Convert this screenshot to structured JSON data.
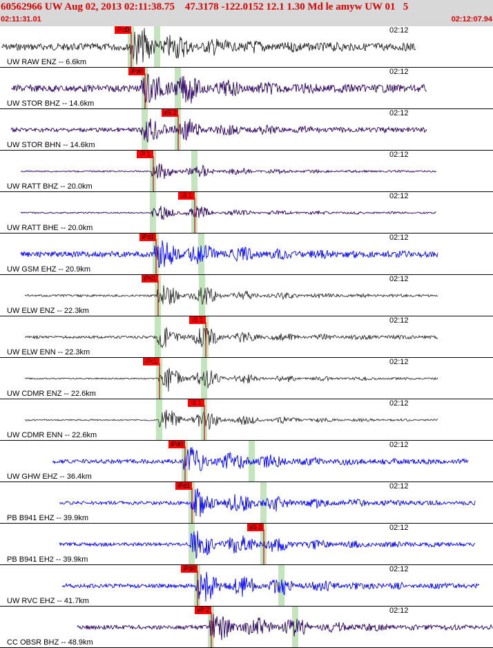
{
  "header": {
    "title": "60562966 UW Aug 02, 2013 02:11:38.75    47.3178 -122.0152 12.1 1.30 Md le amyw UW 01   5",
    "start_time": "02:11:31.01",
    "end_time": "02:12:07.94"
  },
  "colors": {
    "header_text": "#e00000",
    "pick_box": "#ff0000",
    "window": "#b8e0b0",
    "blue_trace": "#0000ff",
    "dark_trace": "#202020",
    "purple_trace": "#2a0060"
  },
  "traces": [
    {
      "label": "UW RAW ENZ -- 6.6km",
      "time": "02:12",
      "color": "#202020",
      "pick": "iPcD",
      "pick_pos": "p",
      "windows": [
        "p",
        "s"
      ]
    },
    {
      "label": "UW STOR BHZ -- 14.6km",
      "time": "02:12",
      "color": "#2a0060",
      "pick": "iPd0",
      "pick_pos": "p",
      "windows": [
        "p",
        "s"
      ]
    },
    {
      "label": "UW STOR BHN -- 14.6km",
      "time": "02:12",
      "color": "#2a0060",
      "pick": "eS 2",
      "pick_pos": "s",
      "windows": [
        "p",
        "s"
      ]
    },
    {
      "label": "UW RATT BHZ -- 20.0km",
      "time": "02:12",
      "color": "#2a0060",
      "pick": "iP 1",
      "pick_pos": "p",
      "windows": [
        "p",
        "s"
      ]
    },
    {
      "label": "UW RATT BHE -- 20.0km",
      "time": "02:12",
      "color": "#2a0060",
      "pick": "iS 1",
      "pick_pos": "s",
      "windows": [
        "p",
        "s"
      ]
    },
    {
      "label": "UW GSM EHZ -- 20.9km",
      "time": "02:12",
      "color": "#0000ff",
      "pick": "iPd1",
      "pick_pos": "p",
      "windows": [
        "p",
        "s"
      ]
    },
    {
      "label": "UW ELW ENZ -- 22.3km",
      "time": "02:12",
      "color": "#303030",
      "pick": "iPd1",
      "pick_pos": "p",
      "windows": [
        "p",
        "s"
      ]
    },
    {
      "label": "UW ELW ENN -- 22.3km",
      "time": "02:12",
      "color": "#303030",
      "pick": "iS 1",
      "pick_pos": "s",
      "windows": [
        "p",
        "s"
      ]
    },
    {
      "label": "UW CDMR ENZ -- 22.6km",
      "time": "02:12",
      "color": "#303030",
      "pick": "iPc1",
      "pick_pos": "p",
      "windows": [
        "p",
        "s"
      ]
    },
    {
      "label": "UW CDMR ENN -- 22.6km",
      "time": "02:12",
      "color": "#303030",
      "pick": "iS 1",
      "pick_pos": "s",
      "windows": [
        "p",
        "s"
      ]
    },
    {
      "label": "UW GHW EHZ -- 36.4km",
      "time": "02:12",
      "color": "#0000ff",
      "pick": "iPd0",
      "pick_pos": "p",
      "windows": [
        "p",
        "s"
      ]
    },
    {
      "label": "PB B941 EHZ -- 39.9km",
      "time": "02:12",
      "color": "#0000ff",
      "pick": "iPd1",
      "pick_pos": "p",
      "windows": [
        "p",
        "s"
      ]
    },
    {
      "label": "PB B941 EH2 -- 39.9km",
      "time": "02:12",
      "color": "#0000ff",
      "pick": "eS 2",
      "pick_pos": "s",
      "windows": [
        "p",
        "s"
      ]
    },
    {
      "label": "UW RVC EHZ -- 41.7km",
      "time": "02:12",
      "color": "#0000ff",
      "pick": "iPd0",
      "pick_pos": "p",
      "windows": [
        "p",
        "s"
      ]
    },
    {
      "label": "CC OBSR BHZ -- 48.9km",
      "time": "02:12",
      "color": "#2a0060",
      "pick": "eP 2",
      "pick_pos": "p",
      "windows": [
        "p",
        "s"
      ]
    }
  ]
}
